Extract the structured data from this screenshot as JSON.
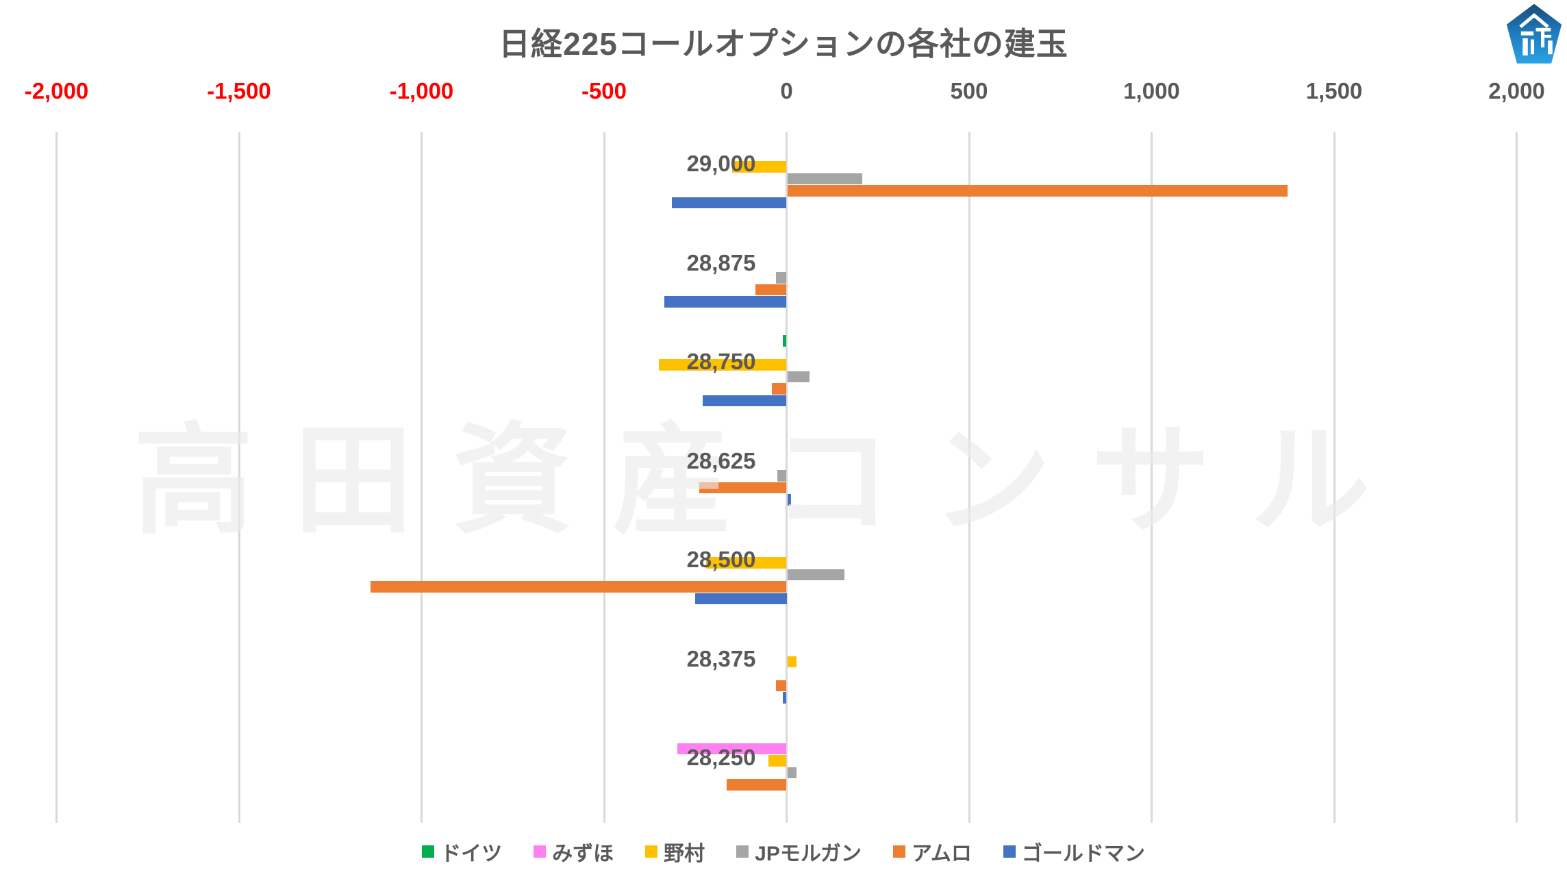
{
  "title": "日経225コールオプションの各社の建玉",
  "watermark": "高田資産コンサル",
  "logo": {
    "icon": "pentagon-building-logo",
    "color_top": "#1B4A7A",
    "color_bottom": "#2BA3E6",
    "glyph_color": "#ffffff"
  },
  "axis": {
    "tick_color": "#595959",
    "tick_negative_color": "#FF0000",
    "gridline_color": "#D9D9D9"
  },
  "chart_data": {
    "type": "bar",
    "orientation": "horizontal",
    "title": "日経225コールオプションの各社の建玉",
    "xlabel": "",
    "ylabel": "",
    "xlim": [
      -2000,
      2000
    ],
    "grid": true,
    "legend_position": "bottom",
    "x_ticks": [
      {
        "value": -2000,
        "label": "-2,000"
      },
      {
        "value": -1500,
        "label": "-1,500"
      },
      {
        "value": -1000,
        "label": "-1,000"
      },
      {
        "value": -500,
        "label": "-500"
      },
      {
        "value": 0,
        "label": "0"
      },
      {
        "value": 500,
        "label": "500"
      },
      {
        "value": 1000,
        "label": "1,000"
      },
      {
        "value": 1500,
        "label": "1,500"
      },
      {
        "value": 2000,
        "label": "2,000"
      }
    ],
    "categories": [
      "29,000",
      "28,875",
      "28,750",
      "28,625",
      "28,500",
      "28,375",
      "28,250"
    ],
    "series": [
      {
        "name": "ドイツ",
        "color": "#00AE50",
        "values": [
          0,
          0,
          -10,
          0,
          0,
          0,
          0
        ]
      },
      {
        "name": "みずほ",
        "color": "#FF80F0",
        "values": [
          0,
          0,
          0,
          0,
          0,
          0,
          -300
        ]
      },
      {
        "name": "野村",
        "color": "#FFC000",
        "values": [
          -150,
          0,
          -350,
          0,
          -220,
          25,
          -50
        ]
      },
      {
        "name": "JPモルガン",
        "color": "#A5A5A5",
        "values": [
          205,
          -30,
          60,
          -25,
          155,
          0,
          25
        ]
      },
      {
        "name": "アムロ",
        "color": "#ED7D31",
        "values": [
          1370,
          -85,
          -40,
          -240,
          -1140,
          -30,
          -165
        ]
      },
      {
        "name": "ゴールドマン",
        "color": "#4472C4",
        "values": [
          -315,
          -335,
          -230,
          10,
          -250,
          -10,
          0
        ]
      }
    ]
  }
}
